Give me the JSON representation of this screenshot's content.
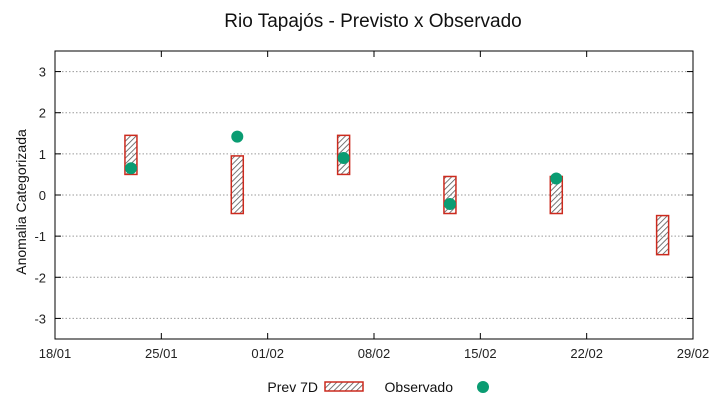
{
  "chart_data": {
    "type": "range-bar + scatter",
    "title": "Rio Tapajós - Previsto x Observado",
    "xlabel": "",
    "ylabel": "Anomalia Categorizada",
    "x_ticks": [
      "18/01",
      "25/01",
      "01/02",
      "08/02",
      "15/02",
      "22/02",
      "29/02"
    ],
    "x_tick_days": [
      0,
      7,
      14,
      21,
      28,
      35,
      42
    ],
    "xlim_days": [
      0,
      42
    ],
    "ylim": [
      -3.5,
      3.5
    ],
    "y_ticks": [
      -3,
      -2,
      -1,
      0,
      1,
      2,
      3
    ],
    "y_tick_labels": [
      "-3",
      "-2",
      "-1",
      "0",
      "1",
      "2",
      "3"
    ],
    "grid": true,
    "series": [
      {
        "name": "Prev 7D",
        "kind": "range-box",
        "color": "#cc2a1e",
        "hatch_color": "#555555",
        "points": [
          {
            "x_day": 5.0,
            "low": 0.5,
            "high": 1.45
          },
          {
            "x_day": 12.0,
            "low": -0.45,
            "high": 0.95
          },
          {
            "x_day": 19.0,
            "low": 0.5,
            "high": 1.45
          },
          {
            "x_day": 26.0,
            "low": -0.45,
            "high": 0.45
          },
          {
            "x_day": 33.0,
            "low": -0.45,
            "high": 0.45
          },
          {
            "x_day": 40.0,
            "low": -1.45,
            "high": -0.5
          }
        ]
      },
      {
        "name": "Observado",
        "kind": "scatter",
        "color": "#0a9c72",
        "points": [
          {
            "x_day": 5.0,
            "y": 0.65
          },
          {
            "x_day": 12.0,
            "y": 1.42
          },
          {
            "x_day": 19.0,
            "y": 0.9
          },
          {
            "x_day": 26.0,
            "y": -0.22
          },
          {
            "x_day": 33.0,
            "y": 0.4
          }
        ]
      }
    ],
    "legend": {
      "placement": "bottom-center",
      "entries": [
        "Prev 7D",
        "Observado"
      ]
    }
  }
}
